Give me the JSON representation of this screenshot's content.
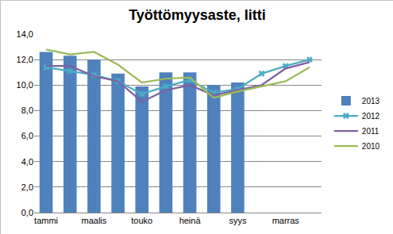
{
  "chart_data": {
    "type": "bar",
    "title": "Työttömyysaste, Iitti",
    "categories": [
      "tammi",
      null,
      "maalis",
      null,
      "touko",
      null,
      "heinä",
      null,
      "syys",
      null,
      "marras",
      null
    ],
    "series": [
      {
        "name": "2013",
        "type": "bar",
        "color": "#4f81bd",
        "values": [
          12.6,
          12.3,
          12.0,
          10.9,
          9.9,
          11.0,
          11.0,
          10.0,
          10.2,
          null,
          null,
          null
        ]
      },
      {
        "name": "2012",
        "type": "line",
        "color": "#4bacc6",
        "marker": "x",
        "values": [
          11.4,
          11.1,
          10.8,
          10.3,
          9.3,
          9.9,
          10.4,
          9.4,
          9.7,
          10.9,
          11.5,
          12.0
        ]
      },
      {
        "name": "2011",
        "type": "line",
        "color": "#7d60a0",
        "values": [
          11.5,
          11.5,
          10.7,
          10.3,
          8.7,
          9.6,
          10.0,
          9.2,
          9.6,
          10.0,
          11.3,
          11.8
        ]
      },
      {
        "name": "2010",
        "type": "line",
        "color": "#9bbb59",
        "values": [
          12.8,
          12.4,
          12.6,
          11.6,
          10.2,
          10.5,
          10.6,
          9.0,
          9.5,
          9.9,
          10.3,
          11.4
        ]
      }
    ],
    "ylim": [
      0,
      14
    ],
    "yticks": [
      {
        "value": 0,
        "label": "0,0"
      },
      {
        "value": 2,
        "label": "2,0"
      },
      {
        "value": 4,
        "label": "4,0"
      },
      {
        "value": 6,
        "label": "6,0"
      },
      {
        "value": 8,
        "label": "8,0"
      },
      {
        "value": 10,
        "label": "10,0"
      },
      {
        "value": 12,
        "label": "12,0"
      },
      {
        "value": 14,
        "label": "14,0"
      }
    ],
    "grid": true,
    "legend": "right"
  }
}
